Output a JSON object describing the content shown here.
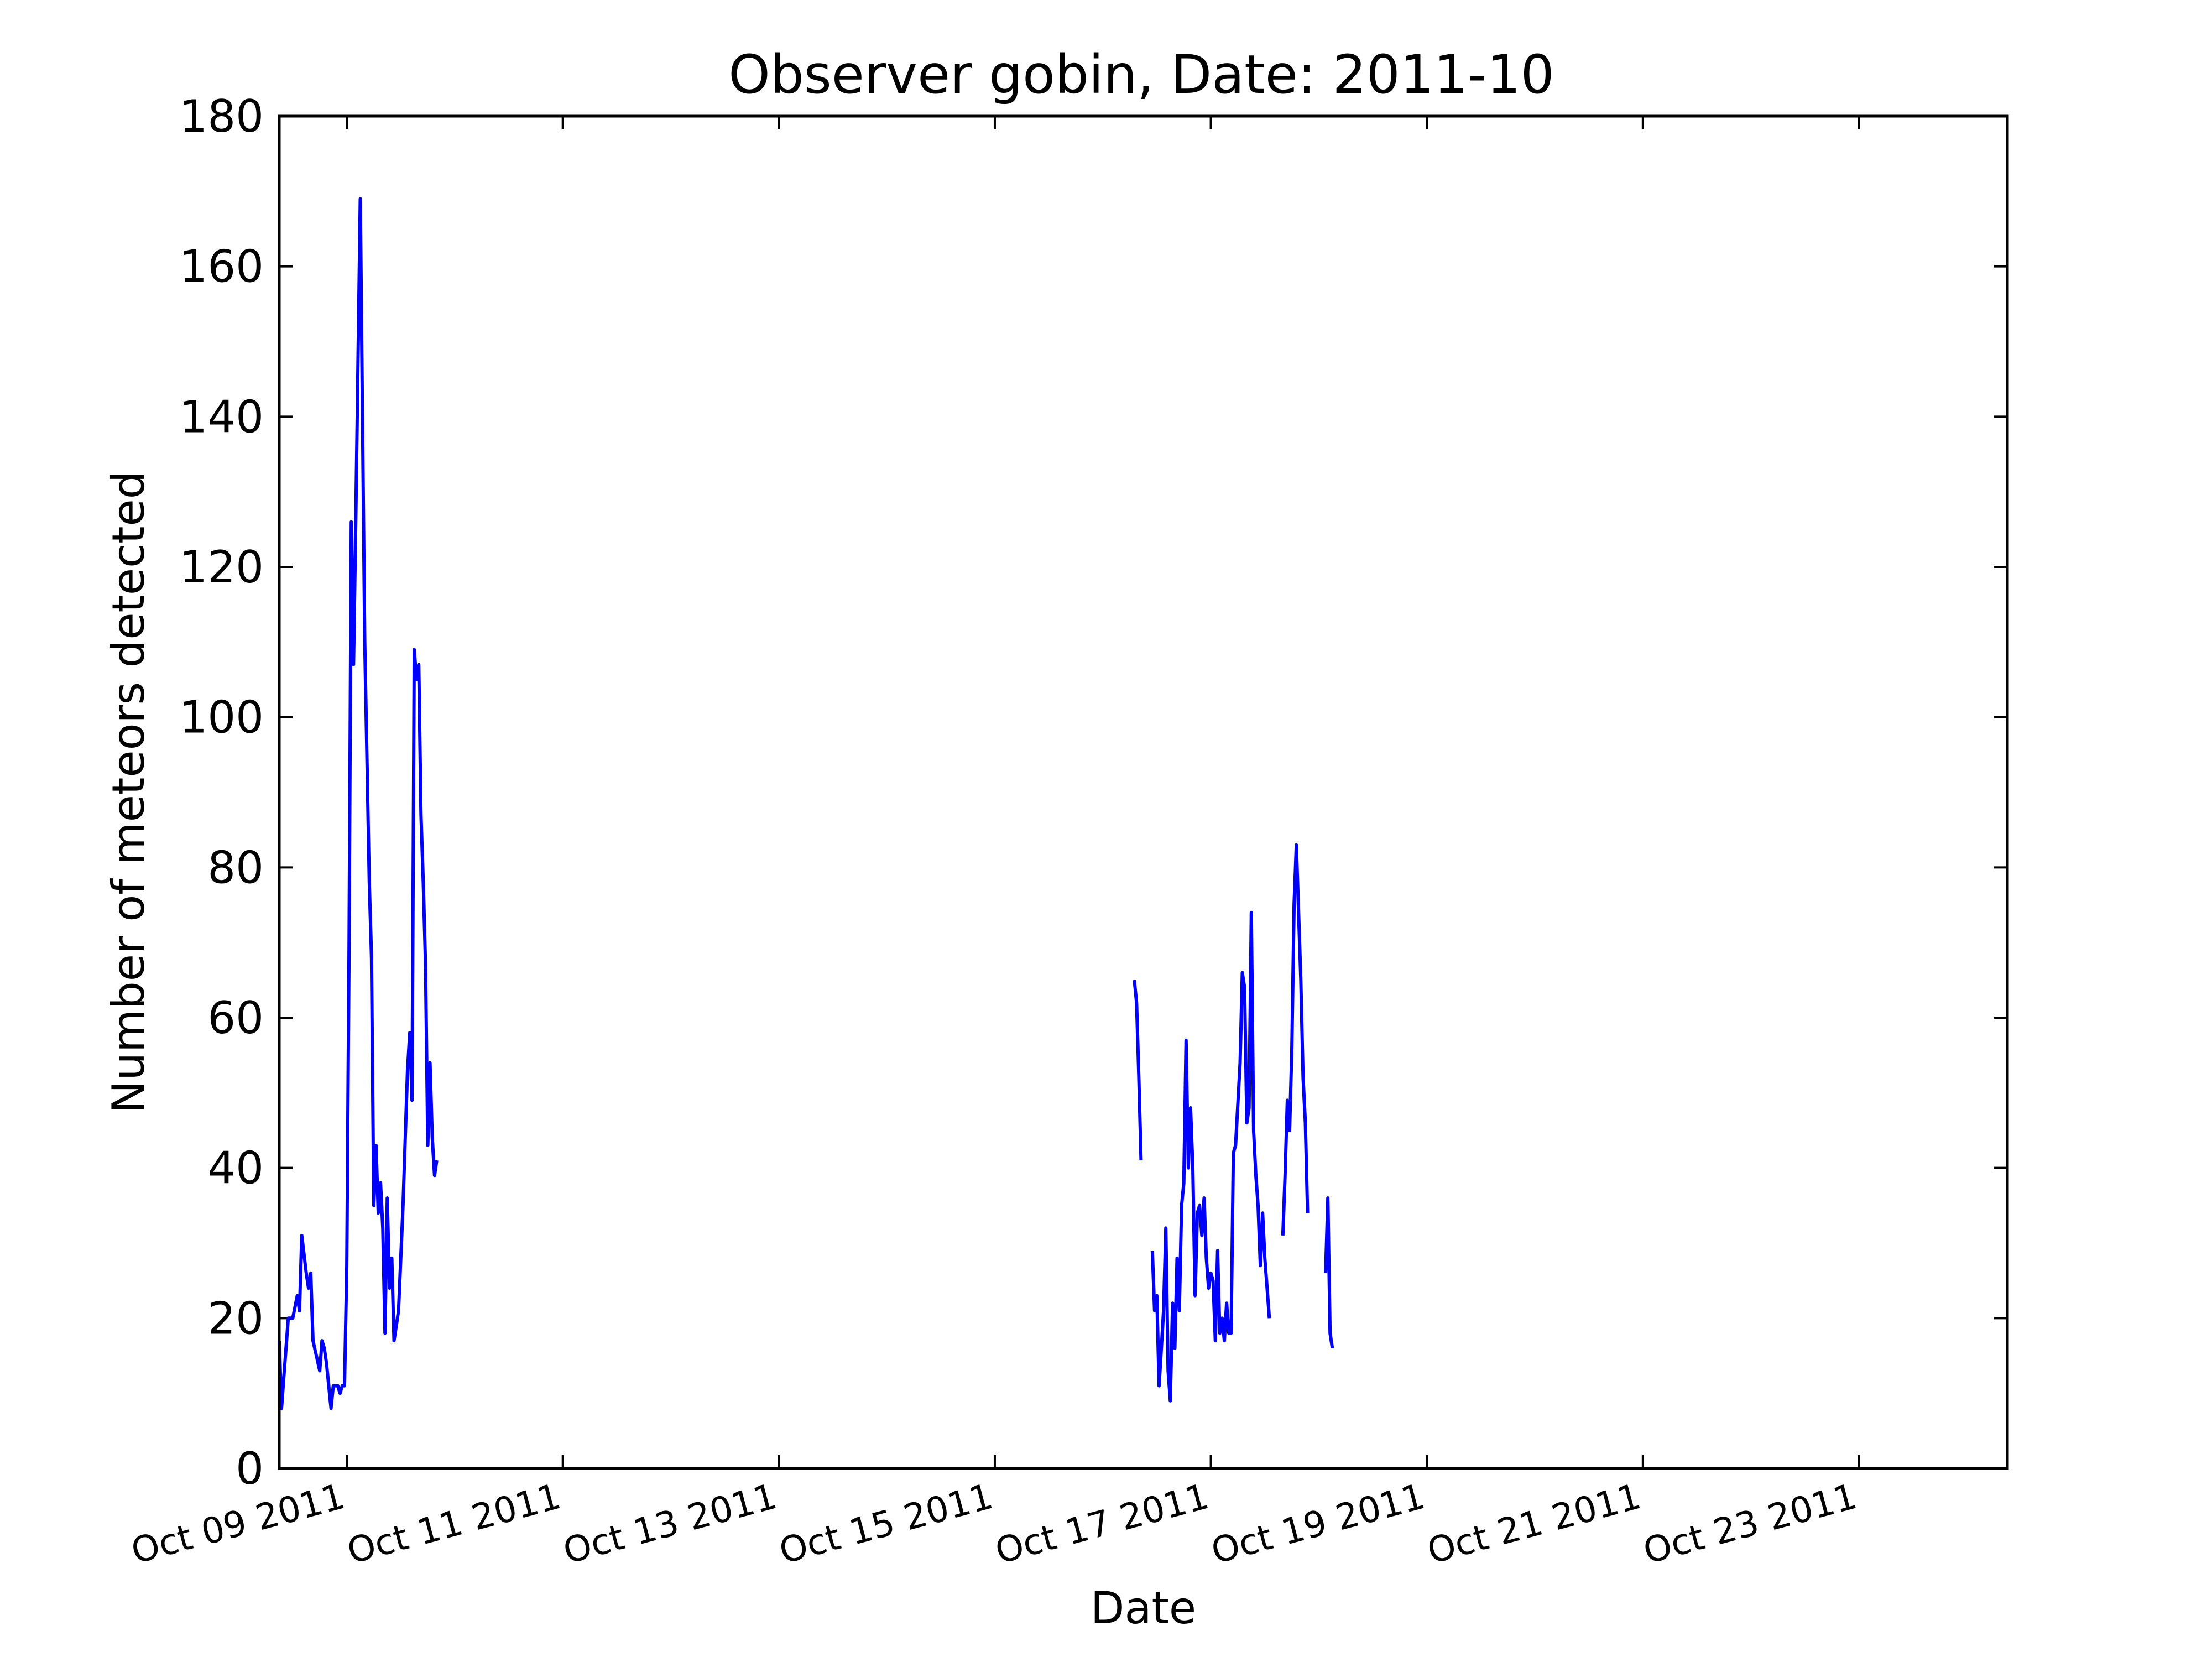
{
  "chart_data": {
    "type": "line",
    "title": "Observer gobin, Date: 2011-10",
    "xlabel": "Date",
    "ylabel": "Number of meteors detected",
    "xlim": [
      "2011-10-08T09:00",
      "2011-10-24T09:00"
    ],
    "ylim": [
      0,
      180
    ],
    "yticks": [
      0,
      20,
      40,
      60,
      80,
      100,
      120,
      140,
      160,
      180
    ],
    "xticks": [
      {
        "date": "2011-10-09",
        "label": "Oct 09 2011"
      },
      {
        "date": "2011-10-11",
        "label": "Oct 11 2011"
      },
      {
        "date": "2011-10-13",
        "label": "Oct 13 2011"
      },
      {
        "date": "2011-10-15",
        "label": "Oct 15 2011"
      },
      {
        "date": "2011-10-17",
        "label": "Oct 17 2011"
      },
      {
        "date": "2011-10-19",
        "label": "Oct 19 2011"
      },
      {
        "date": "2011-10-21",
        "label": "Oct 21 2011"
      },
      {
        "date": "2011-10-23",
        "label": "Oct 23 2011"
      }
    ],
    "grid": false,
    "legend": "none",
    "line_color": "#0000ff",
    "series": [
      {
        "segments": [
          [
            [
              "2011-10-08T09:00",
              17
            ],
            [
              "2011-10-08T09:30",
              8
            ],
            [
              "2011-10-08T10:00",
              12
            ],
            [
              "2011-10-08T11:00",
              20
            ],
            [
              "2011-10-08T12:00",
              20
            ],
            [
              "2011-10-08T13:00",
              23
            ],
            [
              "2011-10-08T13:30",
              21
            ],
            [
              "2011-10-08T14:00",
              31
            ],
            [
              "2011-10-08T15:00",
              26
            ],
            [
              "2011-10-08T15:30",
              24
            ],
            [
              "2011-10-08T16:00",
              26
            ],
            [
              "2011-10-08T16:30",
              17
            ],
            [
              "2011-10-08T18:00",
              13
            ],
            [
              "2011-10-08T18:30",
              17
            ],
            [
              "2011-10-08T19:00",
              16
            ],
            [
              "2011-10-08T19:30",
              14
            ],
            [
              "2011-10-08T20:30",
              8
            ],
            [
              "2011-10-08T21:00",
              11
            ],
            [
              "2011-10-08T22:00",
              11
            ],
            [
              "2011-10-08T22:30",
              10
            ],
            [
              "2011-10-08T23:00",
              11
            ],
            [
              "2011-10-08T23:30",
              11
            ],
            [
              "2011-10-09T00:00",
              27
            ],
            [
              "2011-10-09T00:30",
              68
            ],
            [
              "2011-10-09T01:00",
              126
            ],
            [
              "2011-10-09T01:30",
              107
            ],
            [
              "2011-10-09T02:00",
              126
            ],
            [
              "2011-10-09T03:00",
              169
            ],
            [
              "2011-10-09T04:00",
              110
            ],
            [
              "2011-10-09T05:00",
              78
            ],
            [
              "2011-10-09T05:30",
              68
            ],
            [
              "2011-10-09T06:00",
              35
            ],
            [
              "2011-10-09T06:30",
              43
            ],
            [
              "2011-10-09T07:00",
              34
            ],
            [
              "2011-10-09T07:30",
              38
            ],
            [
              "2011-10-09T08:00",
              32
            ],
            [
              "2011-10-09T08:30",
              18
            ],
            [
              "2011-10-09T09:00",
              36
            ],
            [
              "2011-10-09T09:30",
              24
            ],
            [
              "2011-10-09T10:00",
              28
            ],
            [
              "2011-10-09T10:30",
              17
            ],
            [
              "2011-10-09T11:30",
              21
            ],
            [
              "2011-10-09T12:30",
              35
            ],
            [
              "2011-10-09T13:30",
              53
            ],
            [
              "2011-10-09T14:00",
              58
            ],
            [
              "2011-10-09T14:30",
              49
            ],
            [
              "2011-10-09T15:00",
              109
            ],
            [
              "2011-10-09T15:30",
              105
            ],
            [
              "2011-10-09T16:00",
              107
            ],
            [
              "2011-10-09T16:30",
              87
            ],
            [
              "2011-10-09T17:00",
              78
            ],
            [
              "2011-10-09T17:30",
              67
            ],
            [
              "2011-10-09T18:00",
              43
            ],
            [
              "2011-10-09T18:30",
              54
            ],
            [
              "2011-10-09T19:00",
              44
            ],
            [
              "2011-10-09T19:30",
              39
            ],
            [
              "2011-10-09T20:00",
              41
            ]
          ],
          [
            [
              "2011-10-16T07:00",
              65
            ],
            [
              "2011-10-16T07:30",
              62
            ],
            [
              "2011-10-16T08:00",
              52
            ],
            [
              "2011-10-16T08:30",
              41
            ]
          ],
          [
            [
              "2011-10-16T11:00",
              29
            ],
            [
              "2011-10-16T11:30",
              21
            ],
            [
              "2011-10-16T12:00",
              23
            ],
            [
              "2011-10-16T12:30",
              11
            ],
            [
              "2011-10-16T13:00",
              16
            ],
            [
              "2011-10-16T13:30",
              21
            ],
            [
              "2011-10-16T14:00",
              32
            ],
            [
              "2011-10-16T14:30",
              13
            ],
            [
              "2011-10-16T15:00",
              9
            ],
            [
              "2011-10-16T15:30",
              22
            ],
            [
              "2011-10-16T16:00",
              16
            ],
            [
              "2011-10-16T16:30",
              28
            ],
            [
              "2011-10-16T17:00",
              21
            ],
            [
              "2011-10-16T17:30",
              35
            ],
            [
              "2011-10-16T18:00",
              38
            ],
            [
              "2011-10-16T18:30",
              57
            ],
            [
              "2011-10-16T19:00",
              40
            ],
            [
              "2011-10-16T19:30",
              48
            ],
            [
              "2011-10-16T20:00",
              40
            ],
            [
              "2011-10-16T20:30",
              23
            ],
            [
              "2011-10-16T21:00",
              34
            ],
            [
              "2011-10-16T21:30",
              35
            ],
            [
              "2011-10-16T22:00",
              31
            ],
            [
              "2011-10-16T22:30",
              36
            ],
            [
              "2011-10-16T23:00",
              28
            ],
            [
              "2011-10-16T23:30",
              24
            ],
            [
              "2011-10-17T00:00",
              26
            ],
            [
              "2011-10-17T00:30",
              25
            ],
            [
              "2011-10-17T01:00",
              17
            ],
            [
              "2011-10-17T01:30",
              29
            ],
            [
              "2011-10-17T02:00",
              18
            ],
            [
              "2011-10-17T02:30",
              20
            ],
            [
              "2011-10-17T03:00",
              17
            ],
            [
              "2011-10-17T03:30",
              22
            ],
            [
              "2011-10-17T04:00",
              18
            ],
            [
              "2011-10-17T04:30",
              18
            ],
            [
              "2011-10-17T05:00",
              42
            ],
            [
              "2011-10-17T05:30",
              43
            ],
            [
              "2011-10-17T06:30",
              54
            ],
            [
              "2011-10-17T07:00",
              66
            ],
            [
              "2011-10-17T07:30",
              64
            ],
            [
              "2011-10-17T08:00",
              46
            ],
            [
              "2011-10-17T08:30",
              48
            ],
            [
              "2011-10-17T09:00",
              74
            ],
            [
              "2011-10-17T09:30",
              45
            ],
            [
              "2011-10-17T10:00",
              39
            ],
            [
              "2011-10-17T10:30",
              35
            ],
            [
              "2011-10-17T11:00",
              27
            ],
            [
              "2011-10-17T11:30",
              34
            ],
            [
              "2011-10-17T12:00",
              28
            ],
            [
              "2011-10-17T13:00",
              20
            ]
          ],
          [
            [
              "2011-10-17T16:00",
              31
            ],
            [
              "2011-10-17T16:30",
              39
            ],
            [
              "2011-10-17T17:00",
              49
            ],
            [
              "2011-10-17T17:30",
              45
            ],
            [
              "2011-10-17T18:00",
              56
            ],
            [
              "2011-10-17T18:30",
              75
            ],
            [
              "2011-10-17T19:00",
              83
            ],
            [
              "2011-10-17T20:00",
              65
            ],
            [
              "2011-10-17T20:30",
              52
            ],
            [
              "2011-10-17T21:00",
              46
            ],
            [
              "2011-10-17T21:30",
              34
            ]
          ],
          [
            [
              "2011-10-18T01:30",
              26
            ],
            [
              "2011-10-18T02:00",
              36
            ],
            [
              "2011-10-18T02:30",
              18
            ],
            [
              "2011-10-18T03:00",
              16
            ]
          ]
        ]
      }
    ]
  }
}
